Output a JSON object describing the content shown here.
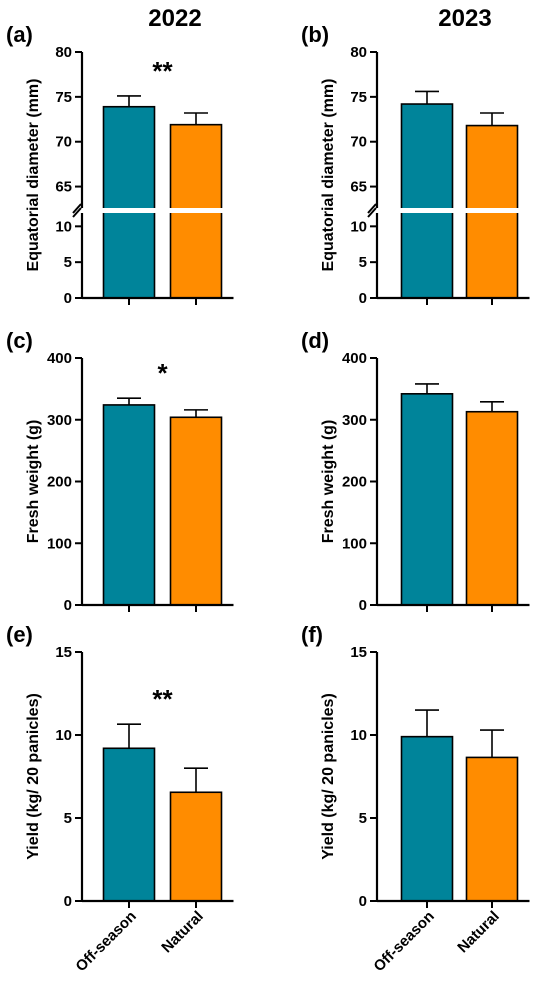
{
  "colors": {
    "off_season": "#00849a",
    "natural": "#ff8c00"
  },
  "columns": [
    "2022",
    "2023"
  ],
  "categories": [
    "Off-season",
    "Natural"
  ],
  "chart_data": [
    {
      "type": "bar",
      "panel": "(a)",
      "ylabel": "Equatorial diameter (mm)",
      "categories": [
        "Off-season",
        "Natural"
      ],
      "values": [
        73.9,
        71.9
      ],
      "errors": [
        1.2,
        1.3
      ],
      "significance": "**",
      "axis_break": true,
      "lower_segment": {
        "ylim": [
          0,
          12
        ],
        "ticks": [
          0,
          5,
          10
        ]
      },
      "upper_segment": {
        "ylim": [
          62.5,
          80
        ],
        "ticks": [
          65,
          70,
          75,
          80
        ]
      }
    },
    {
      "type": "bar",
      "panel": "(b)",
      "ylabel": "Equatorial diameter (mm)",
      "categories": [
        "Off-season",
        "Natural"
      ],
      "values": [
        74.2,
        71.8
      ],
      "errors": [
        1.4,
        1.4
      ],
      "significance": "",
      "axis_break": true,
      "lower_segment": {
        "ylim": [
          0,
          12
        ],
        "ticks": [
          0,
          5,
          10
        ]
      },
      "upper_segment": {
        "ylim": [
          62.5,
          80
        ],
        "ticks": [
          65,
          70,
          75,
          80
        ]
      }
    },
    {
      "type": "bar",
      "panel": "(c)",
      "ylabel": "Fresh weight  (g)",
      "categories": [
        "Off-season",
        "Natural"
      ],
      "values": [
        324,
        304
      ],
      "errors": [
        11,
        12
      ],
      "significance": "*",
      "ylim": [
        0,
        400
      ],
      "ticks": [
        0,
        100,
        200,
        300,
        400
      ]
    },
    {
      "type": "bar",
      "panel": "(d)",
      "ylabel": "Fresh weight  (g)",
      "categories": [
        "Off-season",
        "Natural"
      ],
      "values": [
        342,
        313
      ],
      "errors": [
        16,
        16
      ],
      "significance": "",
      "ylim": [
        0,
        400
      ],
      "ticks": [
        0,
        100,
        200,
        300,
        400
      ]
    },
    {
      "type": "bar",
      "panel": "(e)",
      "ylabel": "Yield (kg/ 20 panicles)",
      "categories": [
        "Off-season",
        "Natural"
      ],
      "values": [
        9.2,
        6.55
      ],
      "errors": [
        1.45,
        1.45
      ],
      "significance": "**",
      "ylim": [
        0,
        15
      ],
      "ticks": [
        0,
        5,
        10,
        15
      ]
    },
    {
      "type": "bar",
      "panel": "(f)",
      "ylabel": "Yield (kg/ 20 panicles)",
      "categories": [
        "Off-season",
        "Natural"
      ],
      "values": [
        9.9,
        8.65
      ],
      "errors": [
        1.6,
        1.65
      ],
      "significance": "",
      "ylim": [
        0,
        15
      ],
      "ticks": [
        0,
        5,
        10,
        15
      ]
    }
  ]
}
